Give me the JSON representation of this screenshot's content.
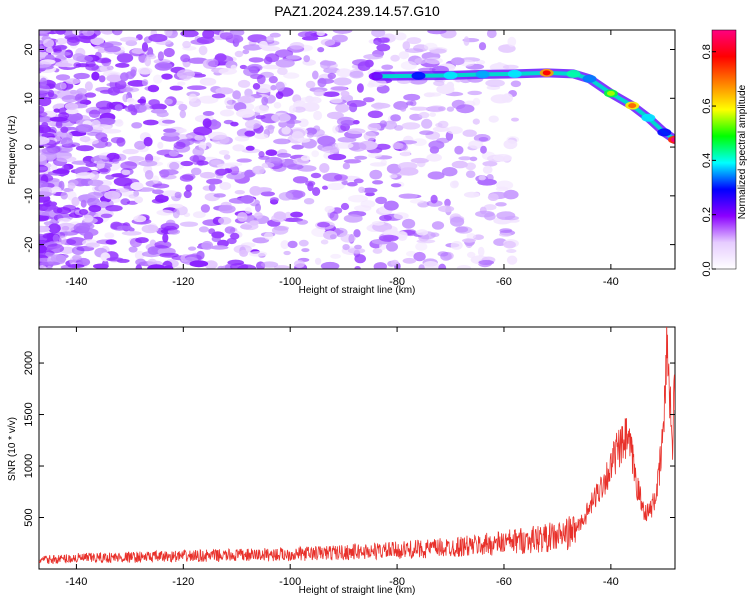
{
  "chart_data": [
    {
      "type": "heatmap",
      "title": "PAZ1.2024.239.14.57.G10",
      "xlabel": "Height of straight line (km)",
      "ylabel": "Frequency (Hz)",
      "xlim": [
        -147,
        -28
      ],
      "ylim": [
        -25,
        24
      ],
      "x_ticks": [
        -140,
        -120,
        -100,
        -80,
        -60,
        -40
      ],
      "y_ticks": [
        -20,
        -10,
        0,
        10,
        20
      ],
      "colorbar": {
        "label": "Normalized spectral amplitude",
        "range": [
          0.0,
          0.88
        ],
        "ticks": [
          0.0,
          0.2,
          0.4,
          0.6,
          0.8
        ],
        "colormap": [
          "#ffffff",
          "#e6ccff",
          "#8b00ff",
          "#0000ff",
          "#00ffff",
          "#00ff00",
          "#ffff00",
          "#ff8000",
          "#ff0000",
          "#ff0080"
        ]
      },
      "ridge": {
        "points": [
          {
            "x": -84,
            "y": 14.5,
            "amp": 0.25
          },
          {
            "x": -76,
            "y": 14.6,
            "amp": 0.35
          },
          {
            "x": -70,
            "y": 14.7,
            "amp": 0.45
          },
          {
            "x": -64,
            "y": 14.9,
            "amp": 0.42
          },
          {
            "x": -58,
            "y": 15.0,
            "amp": 0.45
          },
          {
            "x": -52,
            "y": 15.2,
            "amp": 0.78
          },
          {
            "x": -47,
            "y": 15.0,
            "amp": 0.5
          },
          {
            "x": -44,
            "y": 14.0,
            "amp": 0.4
          },
          {
            "x": -40,
            "y": 11.0,
            "amp": 0.55
          },
          {
            "x": -36,
            "y": 8.5,
            "amp": 0.7
          },
          {
            "x": -33,
            "y": 6.0,
            "amp": 0.45
          },
          {
            "x": -30,
            "y": 3.0,
            "amp": 0.35
          },
          {
            "x": -28,
            "y": 1.5,
            "amp": 0.88
          }
        ]
      }
    },
    {
      "type": "line",
      "xlabel": "Height of straight line (km)",
      "ylabel": "SNR (10 * v/v)",
      "xlim": [
        -147,
        -28
      ],
      "ylim": [
        0,
        2350
      ],
      "x_ticks": [
        -140,
        -120,
        -100,
        -80,
        -60,
        -40
      ],
      "y_ticks": [
        500,
        1000,
        1500,
        2000
      ],
      "color": "#e8302a",
      "series": [
        {
          "x": [
            -147,
            -140,
            -130,
            -120,
            -110,
            -100,
            -90,
            -80,
            -70,
            -65,
            -60,
            -55,
            -50,
            -47,
            -45,
            -43,
            -41,
            -40,
            -39,
            -38,
            -37,
            -36,
            -35,
            -34,
            -33,
            -32,
            -31,
            -30,
            -29.5,
            -29,
            -28.5,
            -28
          ],
          "y": [
            90,
            110,
            120,
            130,
            140,
            150,
            170,
            190,
            220,
            240,
            270,
            300,
            330,
            380,
            500,
            700,
            900,
            1000,
            1150,
            1200,
            1300,
            1100,
            800,
            600,
            550,
            650,
            900,
            1500,
            2300,
            1800,
            1200,
            1900
          ]
        }
      ]
    }
  ]
}
